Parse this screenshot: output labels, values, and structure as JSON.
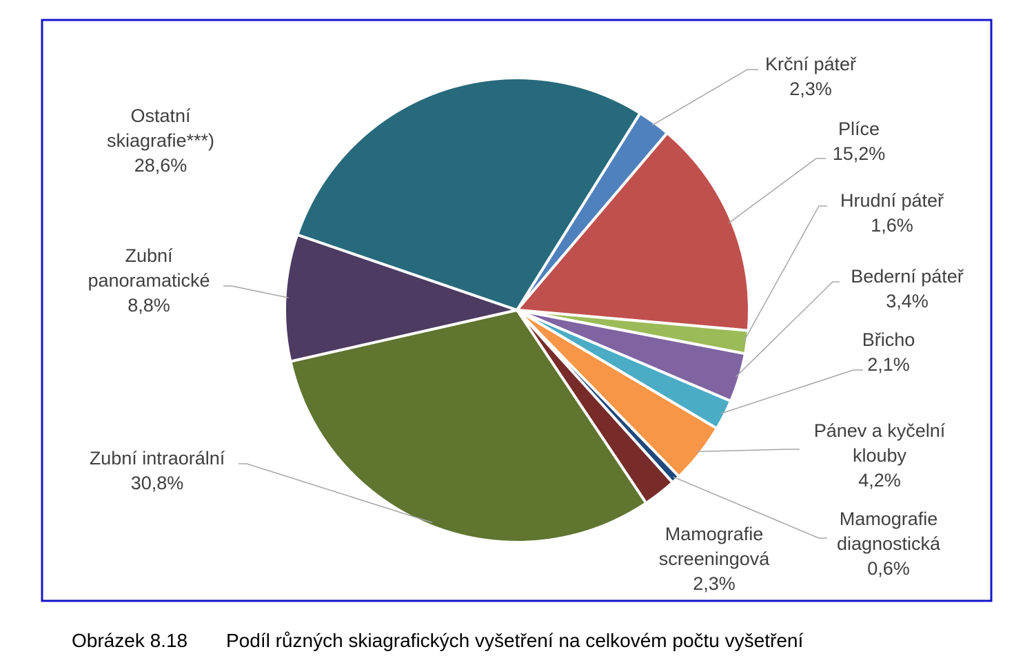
{
  "colors": {
    "frame": "#1515c8",
    "leader": "#a6a6a6",
    "label": "#404040"
  },
  "caption": {
    "number": "Obrázek 8.18",
    "text": "Podíl různých skiagrafických vyšetření na celkovém počtu vyšetření"
  },
  "chart_data": {
    "type": "pie",
    "start_angle_deg": 32,
    "direction": "clockwise",
    "slices": [
      {
        "label": [
          "Krční páteř"
        ],
        "value": 2.3,
        "value_label": "2,3%",
        "color": "#4f81bd"
      },
      {
        "label": [
          "Plíce"
        ],
        "value": 15.2,
        "value_label": "15,2%",
        "color": "#c0504d"
      },
      {
        "label": [
          "Hrudní páteř"
        ],
        "value": 1.6,
        "value_label": "1,6%",
        "color": "#9bbb59"
      },
      {
        "label": [
          "Bederní páteř"
        ],
        "value": 3.4,
        "value_label": "3,4%",
        "color": "#8064a2"
      },
      {
        "label": [
          "Břicho"
        ],
        "value": 2.1,
        "value_label": "2,1%",
        "color": "#4bacc6"
      },
      {
        "label": [
          "Pánev a kyčelní",
          "klouby"
        ],
        "value": 4.2,
        "value_label": "4,2%",
        "color": "#f79646"
      },
      {
        "label": [
          "Mamografie",
          "diagnostická"
        ],
        "value": 0.6,
        "value_label": "0,6%",
        "color": "#1f497d"
      },
      {
        "label": [
          "Mamografie",
          "screeningová"
        ],
        "value": 2.3,
        "value_label": "2,3%",
        "color": "#772c2a"
      },
      {
        "label": [
          "Zubní intraorální"
        ],
        "value": 30.8,
        "value_label": "30,8%",
        "color": "#5f7530"
      },
      {
        "label": [
          "Zubní",
          "panoramatické"
        ],
        "value": 8.8,
        "value_label": "8,8%",
        "color": "#4d3b62"
      },
      {
        "label": [
          "Ostatní",
          "skiagrafie***)"
        ],
        "value": 28.6,
        "value_label": "28,6%",
        "color": "#276a7c"
      }
    ]
  }
}
